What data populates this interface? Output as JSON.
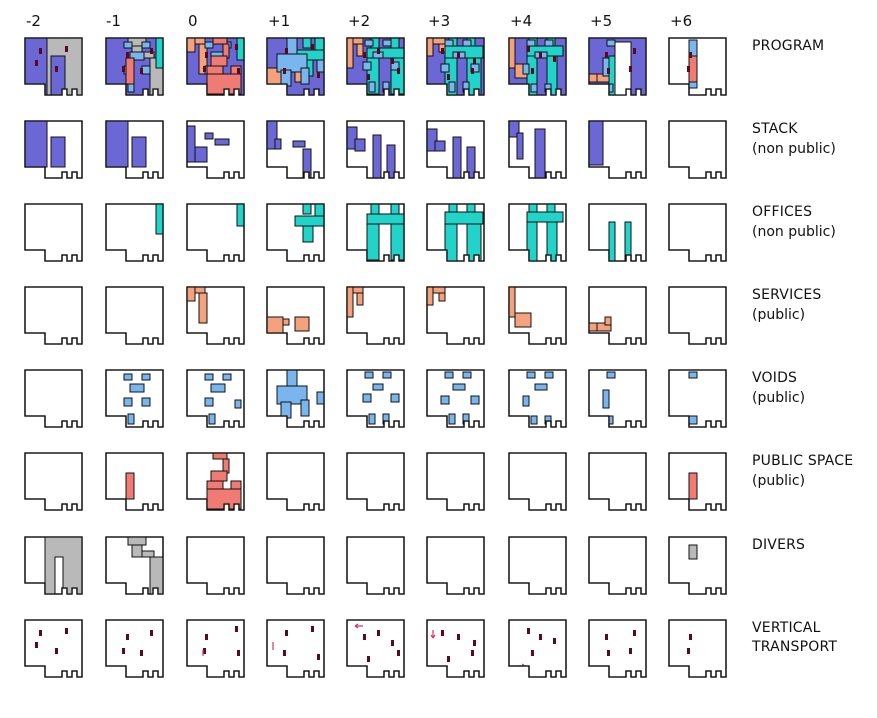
{
  "levels": [
    "-2",
    "-1",
    "0",
    "+1",
    "+2",
    "+3",
    "+4",
    "+5",
    "+6"
  ],
  "colors": {
    "stack": "#6b68d6",
    "offices": "#22d3c9",
    "services": "#f3a27d",
    "voids": "#79b6ef",
    "public": "#ef7b74",
    "divers": "#b9b9b9",
    "vt_marker": "#5a0a1e",
    "vt_arrow": "#e0306a"
  },
  "rows": [
    {
      "key": "program",
      "label": "PROGRAM",
      "sublabel": ""
    },
    {
      "key": "stack",
      "label": "STACK",
      "sublabel": "(non public)"
    },
    {
      "key": "offices",
      "label": "OFFICES",
      "sublabel": "(non public)"
    },
    {
      "key": "services",
      "label": "SERVICES",
      "sublabel": "(public)"
    },
    {
      "key": "voids",
      "label": "VOIDS",
      "sublabel": "(public)"
    },
    {
      "key": "public",
      "label": "PUBLIC SPACE",
      "sublabel": "(public)"
    },
    {
      "key": "divers",
      "label": "DIVERS",
      "sublabel": ""
    },
    {
      "key": "vertical",
      "label": "VERTICAL",
      "sublabel": "TRANSPORT"
    }
  ]
}
